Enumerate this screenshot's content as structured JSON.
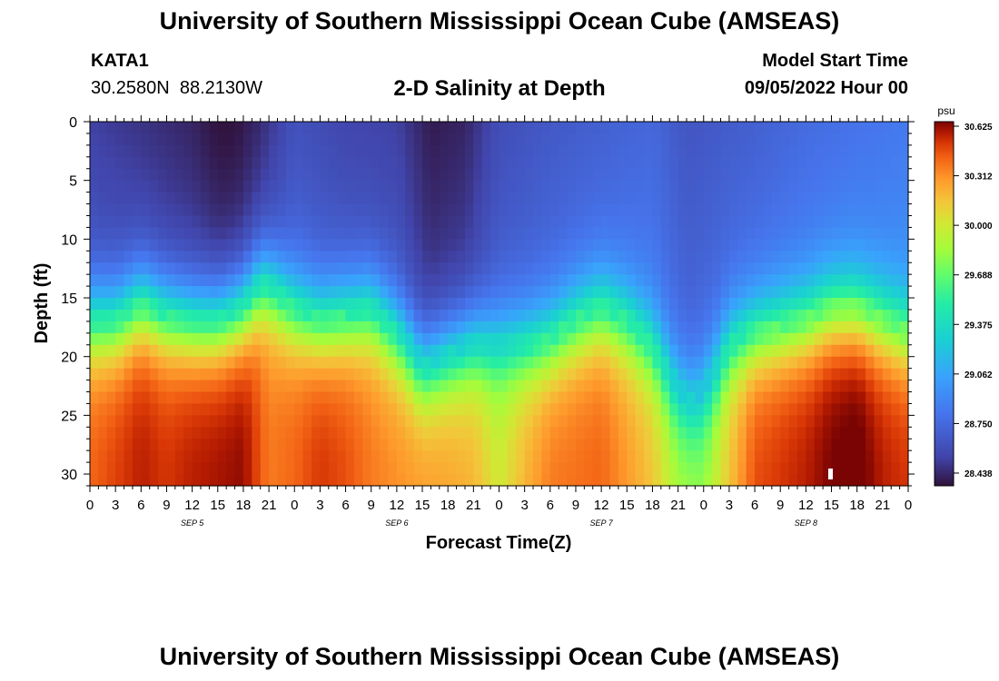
{
  "header": {
    "title": "University of Southern Mississippi Ocean Cube (AMSEAS)",
    "station_id": "KATA1",
    "coordinates": "30.2580N  88.2130W",
    "model_start_label": "Model Start Time",
    "model_start_value": "09/05/2022 Hour 00"
  },
  "footer": {
    "title": "University of Southern Mississippi Ocean Cube (AMSEAS)"
  },
  "chart_data": {
    "type": "heatmap",
    "title": "2-D Salinity at Depth",
    "xlabel": "Forecast Time(Z)",
    "ylabel": "Depth (ft)",
    "xlim": [
      0,
      96
    ],
    "ylim": [
      0,
      31
    ],
    "x_tick_labels": [
      "0",
      "3",
      "6",
      "9",
      "12",
      "15",
      "18",
      "21",
      "0",
      "3",
      "6",
      "9",
      "12",
      "15",
      "18",
      "21",
      "0",
      "3",
      "6",
      "9",
      "12",
      "15",
      "18",
      "21",
      "0",
      "3",
      "6",
      "9",
      "12",
      "15",
      "18",
      "21",
      "0"
    ],
    "x_tick_hours": [
      0,
      3,
      6,
      9,
      12,
      15,
      18,
      21,
      24,
      27,
      30,
      33,
      36,
      39,
      42,
      45,
      48,
      51,
      54,
      57,
      60,
      63,
      66,
      69,
      72,
      75,
      78,
      81,
      84,
      87,
      90,
      93,
      96
    ],
    "day_labels": [
      {
        "text": "SEP 5",
        "hour": 12
      },
      {
        "text": "SEP 6",
        "hour": 36
      },
      {
        "text": "SEP 7",
        "hour": 60
      },
      {
        "text": "SEP 8",
        "hour": 84
      }
    ],
    "y_ticks": [
      0,
      5,
      10,
      15,
      20,
      25,
      30
    ],
    "colorbar": {
      "unit": "psu",
      "min": 28.438,
      "max": 30.625,
      "tick_labels": [
        "30.625",
        "30.312",
        "30.000",
        "29.688",
        "29.375",
        "29.062",
        "28.750",
        "28.438"
      ]
    },
    "halocline_depth_ft_by_hour": [
      [
        0,
        17
      ],
      [
        3,
        17
      ],
      [
        6,
        15.5
      ],
      [
        9,
        16.5
      ],
      [
        12,
        17
      ],
      [
        15,
        17
      ],
      [
        18,
        16
      ],
      [
        20,
        14
      ],
      [
        21,
        14
      ],
      [
        24,
        16
      ],
      [
        27,
        17
      ],
      [
        30,
        16.5
      ],
      [
        33,
        16
      ],
      [
        36,
        18
      ],
      [
        39,
        21
      ],
      [
        42,
        20
      ],
      [
        45,
        19
      ],
      [
        48,
        19
      ],
      [
        51,
        19
      ],
      [
        54,
        18.5
      ],
      [
        57,
        17
      ],
      [
        60,
        16
      ],
      [
        63,
        17
      ],
      [
        66,
        19
      ],
      [
        69,
        23
      ],
      [
        71,
        24
      ],
      [
        73,
        22
      ],
      [
        75,
        19
      ],
      [
        78,
        18
      ],
      [
        81,
        17.5
      ],
      [
        84,
        17
      ],
      [
        87,
        16
      ],
      [
        90,
        16
      ],
      [
        93,
        17
      ],
      [
        96,
        18
      ]
    ],
    "surface_salinity_by_hour": [
      [
        0,
        28.6
      ],
      [
        6,
        28.55
      ],
      [
        12,
        28.5
      ],
      [
        15,
        28.44
      ],
      [
        17,
        28.44
      ],
      [
        20,
        28.52
      ],
      [
        24,
        28.68
      ],
      [
        30,
        28.62
      ],
      [
        36,
        28.6
      ],
      [
        40,
        28.47
      ],
      [
        44,
        28.5
      ],
      [
        48,
        28.66
      ],
      [
        54,
        28.72
      ],
      [
        60,
        28.76
      ],
      [
        66,
        28.8
      ],
      [
        70,
        28.7
      ],
      [
        78,
        28.76
      ],
      [
        84,
        28.82
      ],
      [
        90,
        28.86
      ],
      [
        96,
        28.9
      ]
    ],
    "deep_salinity_by_hour": [
      [
        0,
        30.35
      ],
      [
        6,
        30.5
      ],
      [
        9,
        30.45
      ],
      [
        12,
        30.5
      ],
      [
        18,
        30.55
      ],
      [
        21,
        30.3
      ],
      [
        24,
        30.35
      ],
      [
        27,
        30.45
      ],
      [
        30,
        30.4
      ],
      [
        33,
        30.3
      ],
      [
        36,
        30.25
      ],
      [
        42,
        30.2
      ],
      [
        45,
        30.15
      ],
      [
        48,
        29.95
      ],
      [
        51,
        30.15
      ],
      [
        54,
        30.3
      ],
      [
        60,
        30.35
      ],
      [
        66,
        30.1
      ],
      [
        69,
        29.85
      ],
      [
        72,
        29.8
      ],
      [
        75,
        30.1
      ],
      [
        78,
        30.4
      ],
      [
        84,
        30.5
      ],
      [
        87,
        30.58
      ],
      [
        90,
        30.62
      ],
      [
        93,
        30.5
      ],
      [
        96,
        30.45
      ]
    ]
  }
}
